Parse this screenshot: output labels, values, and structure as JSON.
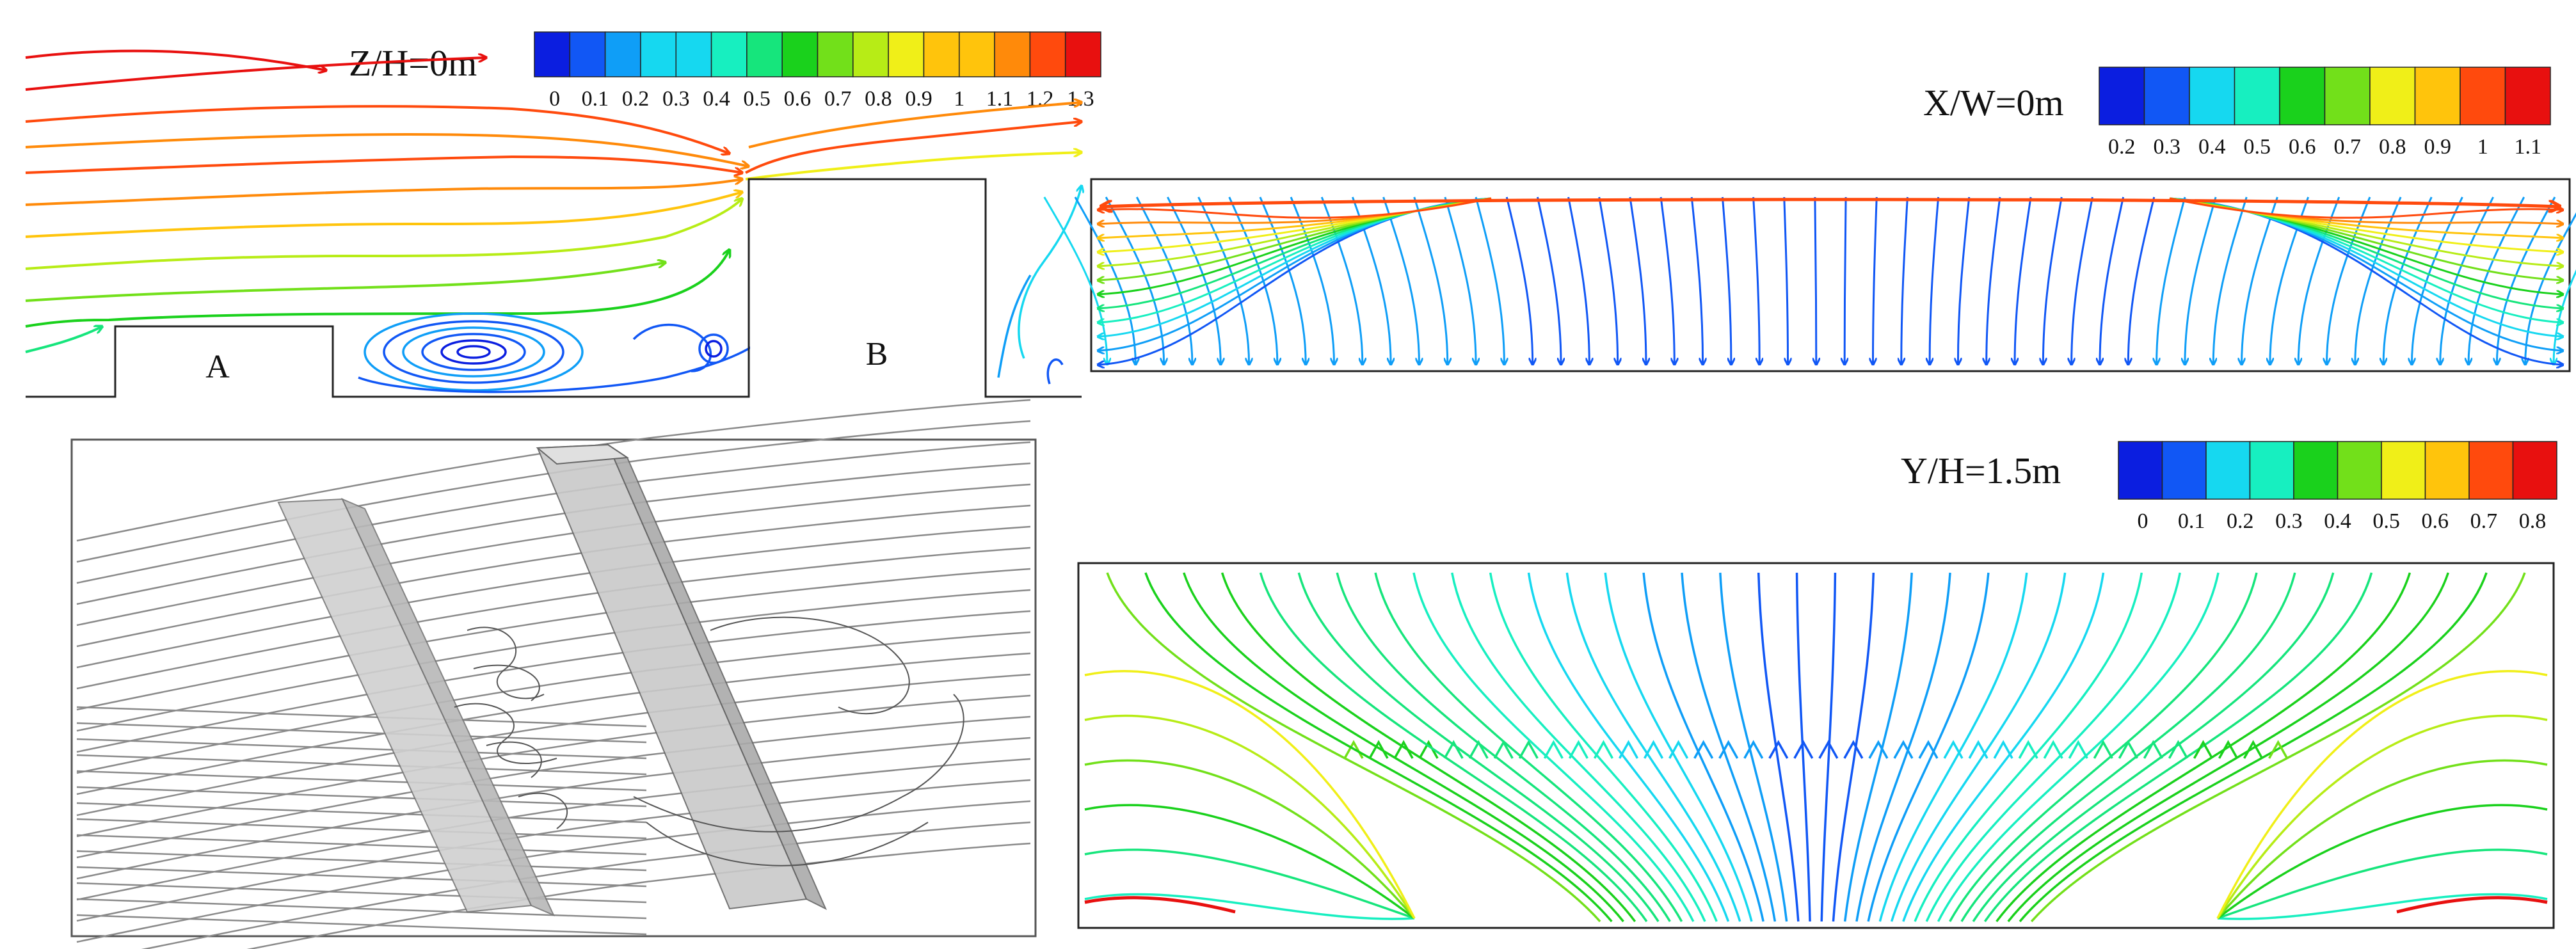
{
  "panels": {
    "z": {
      "title": "Z/H=0m",
      "ticks": [
        "0",
        "0.1",
        "0.2",
        "0.3",
        "0.4",
        "0.5",
        "0.6",
        "0.7",
        "0.8",
        "0.9",
        "1",
        "1.1",
        "1.2",
        "1.3"
      ],
      "building_labels": [
        "A",
        "B"
      ]
    },
    "x": {
      "title": "X/W=0m",
      "ticks": [
        "0.2",
        "0.3",
        "0.4",
        "0.5",
        "0.6",
        "0.7",
        "0.8",
        "0.9",
        "1",
        "1.1"
      ]
    },
    "y": {
      "title": "Y/H=1.5m",
      "ticks": [
        "0",
        "0.1",
        "0.2",
        "0.3",
        "0.4",
        "0.5",
        "0.6",
        "0.7",
        "0.8"
      ]
    }
  },
  "colormap": [
    "#0b1ee0",
    "#1157f5",
    "#0f9ef7",
    "#16d8f0",
    "#17efc0",
    "#16e57c",
    "#1ad11c",
    "#72e01a",
    "#b7ec16",
    "#f0ef18",
    "#ffc40c",
    "#ff8a0a",
    "#ff4a0d",
    "#e8100f"
  ]
}
